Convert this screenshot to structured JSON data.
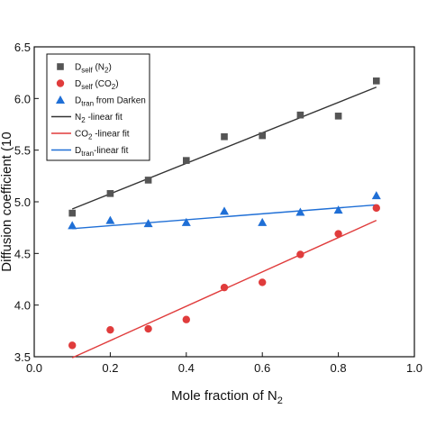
{
  "chart_data": {
    "type": "scatter",
    "xlabel": "Mole fraction of N",
    "xlabel_sub": "2",
    "ylabel": "Diffusion coefficient (10",
    "xlim": [
      0.0,
      1.0
    ],
    "ylim": [
      3.5,
      6.5
    ],
    "x_ticks": [
      "0.0",
      "0.2",
      "0.4",
      "0.6",
      "0.8",
      "1.0"
    ],
    "y_ticks": [
      "3.5",
      "4.0",
      "4.5",
      "5.0",
      "5.5",
      "6.0",
      "6.5"
    ],
    "legend_position": "top-left",
    "grid": false,
    "series": [
      {
        "kind": "points",
        "marker": "square",
        "color": "#555555",
        "x": [
          0.1,
          0.2,
          0.3,
          0.4,
          0.5,
          0.6,
          0.7,
          0.8,
          0.9
        ],
        "y": [
          4.89,
          5.08,
          5.21,
          5.4,
          5.63,
          5.64,
          5.84,
          5.83,
          6.17
        ]
      },
      {
        "kind": "points",
        "marker": "circle",
        "color": "#e03c3c",
        "x": [
          0.1,
          0.2,
          0.3,
          0.4,
          0.5,
          0.6,
          0.7,
          0.8,
          0.9
        ],
        "y": [
          3.61,
          3.76,
          3.77,
          3.86,
          4.17,
          4.22,
          4.49,
          4.69,
          4.94
        ]
      },
      {
        "kind": "points",
        "marker": "triangle",
        "color": "#1f6fd6",
        "x": [
          0.1,
          0.2,
          0.3,
          0.4,
          0.5,
          0.6,
          0.7,
          0.8,
          0.9
        ],
        "y": [
          4.77,
          4.82,
          4.79,
          4.8,
          4.91,
          4.8,
          4.9,
          4.92,
          5.06
        ]
      },
      {
        "kind": "line",
        "color": "#333333",
        "x": [
          0.1,
          0.9
        ],
        "y": [
          4.93,
          6.11
        ]
      },
      {
        "kind": "line",
        "color": "#e03c3c",
        "x": [
          0.1,
          0.9
        ],
        "y": [
          3.49,
          4.82
        ]
      },
      {
        "kind": "line",
        "color": "#1f6fd6",
        "x": [
          0.1,
          0.9
        ],
        "y": [
          4.74,
          4.97
        ]
      }
    ],
    "legend": [
      {
        "main": "D",
        "sub": "self",
        "tail": " (N",
        "sub2": "2",
        "end": ")"
      },
      {
        "main": "D",
        "sub": "self",
        "tail": " (CO",
        "sub2": "2",
        "end": ")"
      },
      {
        "main": "D",
        "sub": "tran",
        "tail": " from Darken",
        "sub2": "",
        "end": ""
      },
      {
        "main": "N",
        "sub": "2",
        "tail": "   -linear fit",
        "sub2": "",
        "end": ""
      },
      {
        "main": "CO",
        "sub": "2",
        "tail": " -linear fit",
        "sub2": "",
        "end": ""
      },
      {
        "main": "D",
        "sub": "tran",
        "tail": "-linear fit",
        "sub2": "",
        "end": ""
      }
    ]
  }
}
